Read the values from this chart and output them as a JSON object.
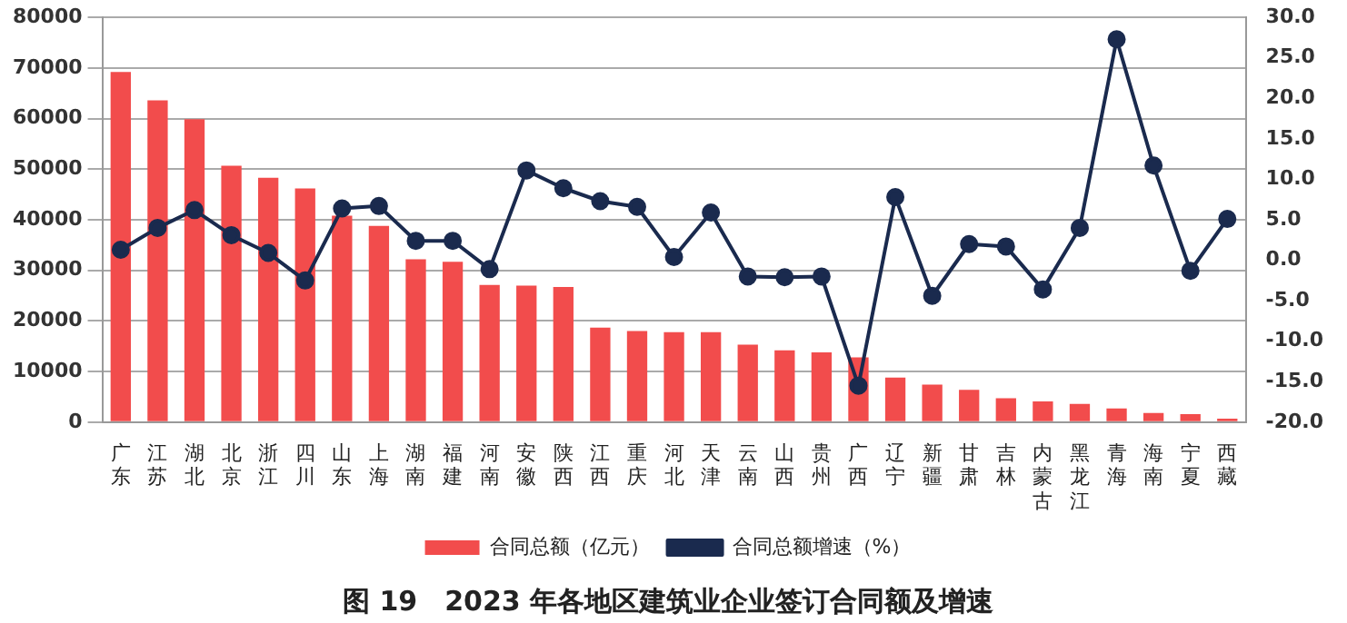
{
  "chart_data": {
    "type": "bar",
    "title": "图 19　2023 年各地区建筑业企业签订合同额及增速",
    "categories": [
      "广东",
      "江苏",
      "湖北",
      "北京",
      "浙江",
      "四川",
      "山东",
      "上海",
      "湖南",
      "福建",
      "河南",
      "安徽",
      "陕西",
      "江西",
      "重庆",
      "河北",
      "天津",
      "云南",
      "山西",
      "贵州",
      "广西",
      "辽宁",
      "新疆",
      "甘肃",
      "吉林",
      "内蒙古",
      "黑龙江",
      "青海",
      "海南",
      "宁夏",
      "西藏"
    ],
    "series": [
      {
        "name": "合同总额（亿元）",
        "color": "#f24c4c",
        "values": [
          69200,
          63600,
          59900,
          50700,
          48300,
          46200,
          40800,
          38800,
          32200,
          31700,
          27100,
          27000,
          26700,
          18700,
          18000,
          17800,
          17800,
          15300,
          14200,
          13800,
          12800,
          8800,
          7400,
          6400,
          4700,
          4100,
          3600,
          2700,
          1800,
          1600,
          700
        ]
      },
      {
        "name": "合同总额增速（%）",
        "type": "line",
        "axis": "y2",
        "color": "#1a2a4e",
        "values": [
          1.3,
          4.0,
          6.2,
          3.1,
          0.9,
          -2.5,
          6.4,
          6.7,
          2.4,
          2.4,
          -1.1,
          11.1,
          8.9,
          7.3,
          6.6,
          0.4,
          5.9,
          -2.0,
          -2.1,
          -2.0,
          -15.5,
          7.8,
          -4.4,
          2.0,
          1.7,
          -3.6,
          4.0,
          27.3,
          11.7,
          -1.3,
          5.1
        ]
      }
    ],
    "ylim": [
      0,
      80000
    ],
    "yticks": [
      0,
      10000,
      20000,
      30000,
      40000,
      50000,
      60000,
      70000,
      80000
    ],
    "y2lim": [
      -20,
      30
    ],
    "y2ticks": [
      {
        "value": -20,
        "label": "-20.0"
      },
      {
        "value": -15,
        "label": "-15.0"
      },
      {
        "value": -10,
        "label": "-10.0"
      },
      {
        "value": -5,
        "label": "-5.0"
      },
      {
        "value": 0,
        "label": "0.0"
      },
      {
        "value": 5,
        "label": "5.0"
      },
      {
        "value": 10,
        "label": "10.0"
      },
      {
        "value": 15,
        "label": "15.0"
      },
      {
        "value": 20,
        "label": "20.0"
      },
      {
        "value": 25,
        "label": "25.0"
      },
      {
        "value": 30,
        "label": "30.0"
      }
    ],
    "grid": "y",
    "legend": "bottom",
    "marker": "circle",
    "line_style": "solid"
  }
}
